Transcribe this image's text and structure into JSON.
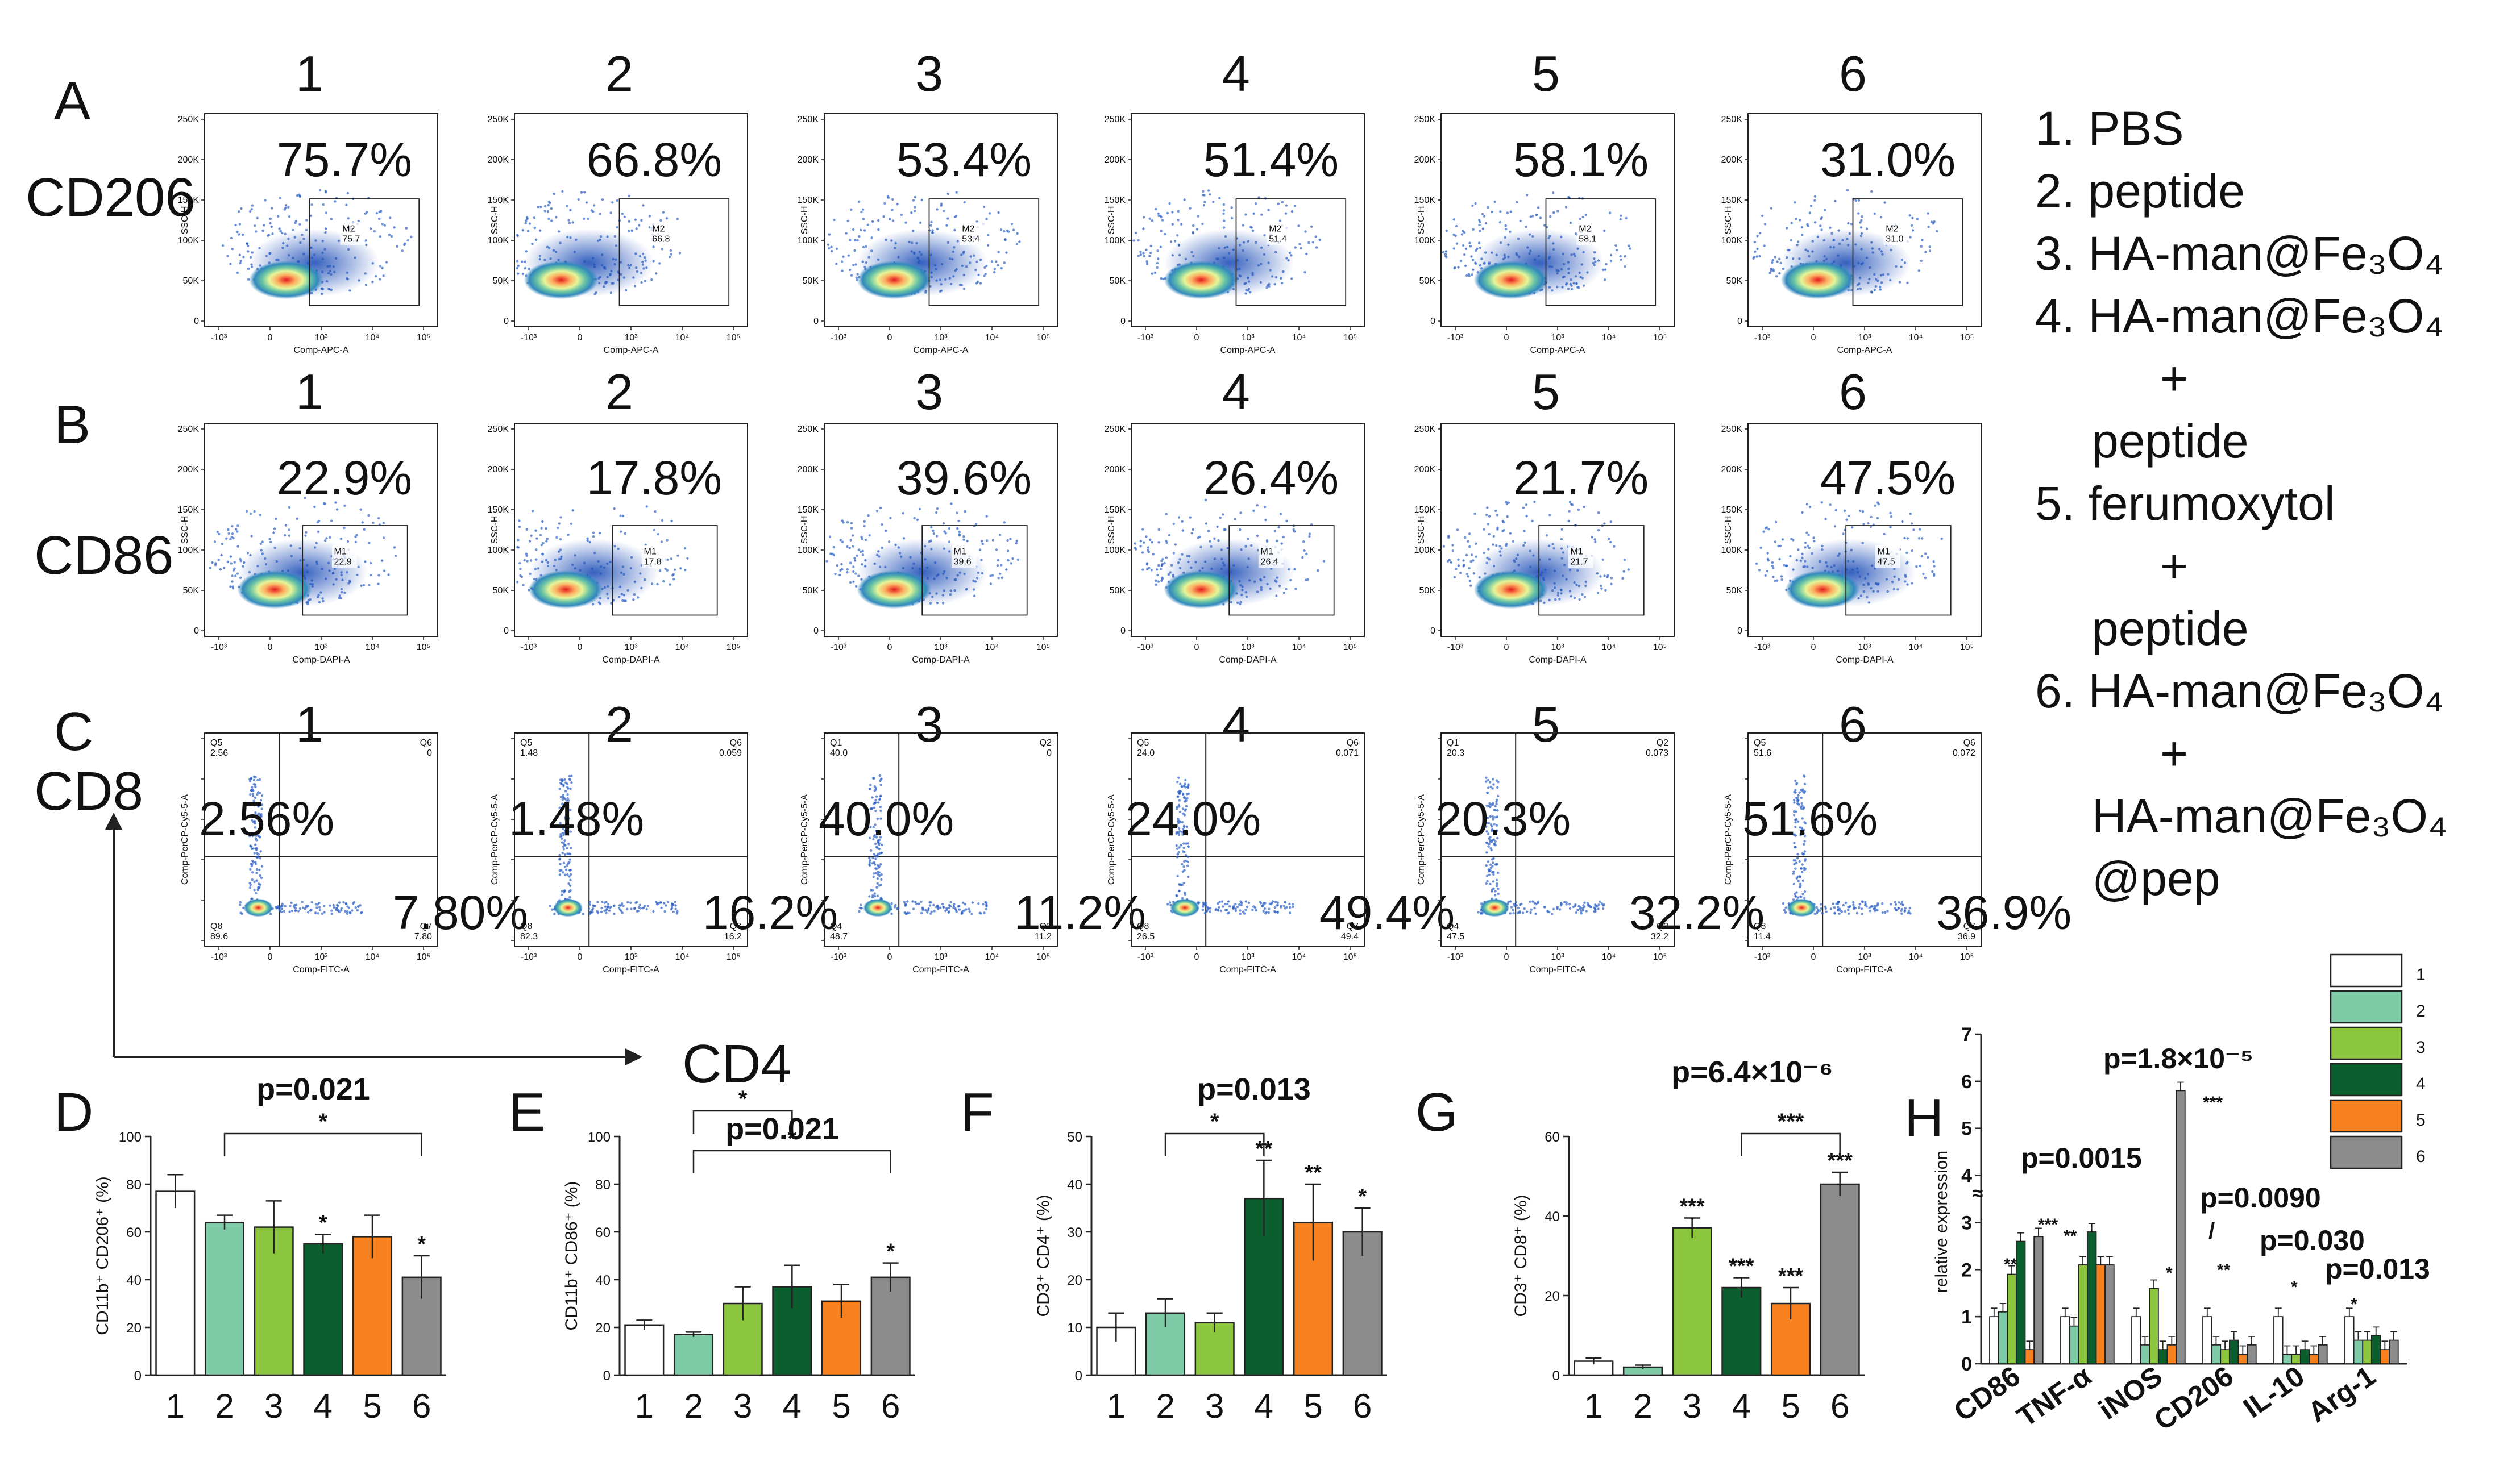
{
  "chart_data": [
    {
      "type": "flow-cytometry-grid",
      "row_labels": [
        "A",
        "B",
        "C"
      ],
      "markers": [
        "CD206",
        "CD86",
        "CD8"
      ],
      "column_titles": [
        "1",
        "2",
        "3",
        "4",
        "5",
        "6"
      ],
      "row_a": {
        "big_pct": [
          "75.7%",
          "66.8%",
          "53.4%",
          "51.4%",
          "58.1%",
          "31.0%"
        ],
        "gate_name": "M2",
        "gate_vals": [
          "75.7",
          "66.8",
          "53.4",
          "51.4",
          "58.1",
          "31.0"
        ],
        "xlabel": "Comp-APC-A",
        "ylabel": "SSC-H"
      },
      "row_b": {
        "big_pct": [
          "22.9%",
          "17.8%",
          "39.6%",
          "26.4%",
          "21.7%",
          "47.5%"
        ],
        "gate_name": "M1",
        "gate_vals": [
          "22.9",
          "17.8",
          "39.6",
          "26.4",
          "21.7",
          "47.5"
        ],
        "xlabel": "Comp-DAPI-A",
        "ylabel": "SSC-H"
      },
      "row_c": {
        "upper_pct": [
          "2.56%",
          "1.48%",
          "40.0%",
          "24.0%",
          "20.3%",
          "51.6%"
        ],
        "lower_pct": [
          "7.80%",
          "16.2%",
          "11.2%",
          "49.4%",
          "32.2%",
          "36.9%"
        ],
        "q_upper_left_name": [
          "Q5",
          "Q5",
          "Q1",
          "Q5",
          "Q1",
          "Q5"
        ],
        "q_upper_left_val": [
          "2.56",
          "1.48",
          "40.0",
          "24.0",
          "20.3",
          "51.6"
        ],
        "q_upper_right_name": [
          "Q6",
          "Q6",
          "Q2",
          "Q6",
          "Q2",
          "Q6"
        ],
        "q_upper_right_val": [
          "0",
          "0.059",
          "0",
          "0.071",
          "0.073",
          "0.072"
        ],
        "q_lower_left_name": [
          "Q8",
          "Q8",
          "Q4",
          "Q8",
          "Q4",
          "Q8"
        ],
        "q_lower_left_val": [
          "89.6",
          "82.3",
          "48.7",
          "26.5",
          "47.5",
          "11.4"
        ],
        "q_lower_right_name": [
          "Q7",
          "Q7",
          "Q3",
          "Q7",
          "Q3",
          "Q7"
        ],
        "q_lower_right_val": [
          "7.80",
          "16.2",
          "11.2",
          "49.4",
          "32.2",
          "36.9"
        ],
        "xlabel": "Comp-FITC-A",
        "ylabel": "Comp-PerCP-Cy5-5-A"
      },
      "y_ticks": [
        "250K",
        "200K",
        "150K",
        "100K",
        "50K",
        "0"
      ],
      "x_ticks": [
        "-10³",
        "0",
        "10³",
        "10⁴",
        "10⁵"
      ],
      "axis_arrows": {
        "y": "CD8",
        "x": "CD4"
      }
    },
    {
      "type": "bar",
      "panel": "D",
      "ylabel": "CD11b⁺ CD206⁺ (%)",
      "ylim": [
        0,
        100
      ],
      "yticks": [
        "0",
        "20",
        "40",
        "60",
        "80",
        "100"
      ],
      "categories": [
        "1",
        "2",
        "3",
        "4",
        "5",
        "6"
      ],
      "values": [
        77,
        64,
        62,
        55,
        58,
        41
      ],
      "errors": [
        7,
        3,
        11,
        4,
        9,
        9
      ],
      "marks": [
        "",
        "",
        "",
        "*",
        "",
        "*"
      ],
      "bracket": {
        "from": 2,
        "to": 6,
        "mark": "*",
        "p": "p=0.021"
      }
    },
    {
      "type": "bar",
      "panel": "E",
      "ylabel": "CD11b⁺ CD86⁺ (%)",
      "ylim": [
        0,
        100
      ],
      "yticks": [
        "0",
        "20",
        "40",
        "60",
        "80",
        "100"
      ],
      "categories": [
        "1",
        "2",
        "3",
        "4",
        "5",
        "6"
      ],
      "values": [
        21,
        17,
        30,
        37,
        31,
        41
      ],
      "errors": [
        2,
        1,
        7,
        9,
        7,
        6
      ],
      "marks": [
        "",
        "",
        "",
        "",
        "",
        "*"
      ],
      "brackets": [
        {
          "from": 2,
          "to": 4,
          "mark": "*"
        },
        {
          "from": 2,
          "to": 6,
          "mark": "*"
        }
      ],
      "p": "p=0.021"
    },
    {
      "type": "bar",
      "panel": "F",
      "ylabel": "CD3⁺ CD4⁺ (%)",
      "ylim": [
        0,
        50
      ],
      "yticks": [
        "0",
        "10",
        "20",
        "30",
        "40",
        "50"
      ],
      "categories": [
        "1",
        "2",
        "3",
        "4",
        "5",
        "6"
      ],
      "values": [
        10,
        13,
        11,
        37,
        32,
        30
      ],
      "errors": [
        3,
        3,
        2,
        8,
        8,
        5
      ],
      "marks": [
        "",
        "",
        "",
        "**",
        "**",
        "*"
      ],
      "bracket": {
        "from": 2,
        "to": 4,
        "mark": "*",
        "p": "p=0.013"
      }
    },
    {
      "type": "bar",
      "panel": "G",
      "ylabel": "CD3⁺ CD8⁺ (%)",
      "ylim": [
        0,
        60
      ],
      "yticks": [
        "0",
        "20",
        "40",
        "60"
      ],
      "categories": [
        "1",
        "2",
        "3",
        "4",
        "5",
        "6"
      ],
      "values": [
        3.5,
        2,
        37,
        22,
        18,
        48
      ],
      "errors": [
        0.8,
        0.5,
        2.5,
        2.5,
        4,
        3
      ],
      "marks": [
        "",
        "",
        "***",
        "***",
        "***",
        "***"
      ],
      "bracket": {
        "from": 4,
        "to": 6,
        "mark": "***",
        "p": "p=6.4×10⁻⁶"
      }
    },
    {
      "type": "grouped-bar",
      "panel": "H",
      "ylabel": "relative expression",
      "ylim": [
        0,
        7
      ],
      "yticks": [
        "0",
        "1",
        "2",
        "3",
        "4",
        "5",
        "6",
        "7"
      ],
      "axis_break": "≈",
      "categories": [
        "CD86",
        "TNF-α",
        "iNOS",
        "CD206",
        "IL-10",
        "Arg-1"
      ],
      "series": [
        {
          "name": "1",
          "color": "#ffffff",
          "values": [
            1.0,
            1.0,
            1.0,
            1.0,
            1.0,
            1.0
          ]
        },
        {
          "name": "2",
          "color": "#7fcba8",
          "values": [
            1.1,
            0.8,
            0.4,
            0.4,
            0.2,
            0.5
          ]
        },
        {
          "name": "3",
          "color": "#8cc63f",
          "values": [
            1.9,
            2.1,
            1.6,
            0.3,
            0.2,
            0.5
          ]
        },
        {
          "name": "4",
          "color": "#0b5e2d",
          "values": [
            2.6,
            2.8,
            0.3,
            0.5,
            0.3,
            0.6
          ]
        },
        {
          "name": "5",
          "color": "#f7811f",
          "values": [
            0.3,
            2.1,
            0.4,
            0.2,
            0.2,
            0.3
          ]
        },
        {
          "name": "6",
          "color": "#8c8c8c",
          "values": [
            2.7,
            2.1,
            5.8,
            0.4,
            0.4,
            0.5
          ]
        }
      ],
      "annotations": [
        "p=1.8×10⁻⁵",
        "p=0.0015",
        "p=0.0090",
        "p=0.030",
        "p=0.013",
        "**",
        "***",
        "**",
        "*",
        "***",
        "/",
        "**",
        "*",
        "*"
      ]
    }
  ],
  "legend": {
    "groups": [
      "1. PBS",
      "2. peptide",
      "3. HA-man@Fe₃O₄",
      "4. HA-man@Fe₃O₄",
      "+",
      "peptide",
      "5. ferumoxytol",
      "+",
      "peptide",
      "6. HA-man@Fe₃O₄",
      "+",
      "HA-man@Fe₃O₄",
      "@pep"
    ]
  },
  "colors": {
    "g1": "#ffffff",
    "g2": "#7fcba8",
    "g3": "#8cc63f",
    "g4": "#0b5e2d",
    "g5": "#f7811f",
    "g6": "#8c8c8c"
  }
}
